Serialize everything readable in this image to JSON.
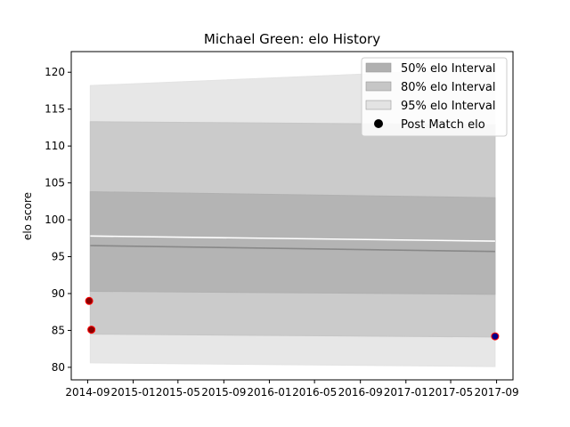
{
  "chart_data": {
    "type": "area",
    "title": "Michael Green: elo History",
    "xlabel": "",
    "ylabel": "elo score",
    "x_range": [
      "2014-07-19",
      "2017-10-15"
    ],
    "ylim": [
      78.3,
      122.8
    ],
    "x_ticks": [
      "2014-09",
      "2015-01",
      "2015-05",
      "2015-09",
      "2016-01",
      "2016-05",
      "2016-09",
      "2017-01",
      "2017-05",
      "2017-09"
    ],
    "y_ticks": [
      80,
      85,
      90,
      95,
      100,
      105,
      110,
      115,
      120
    ],
    "grid": false,
    "legend_position": "top-right",
    "legend": [
      {
        "label": "50% elo Interval",
        "kind": "patch",
        "color": "#b0b0b0"
      },
      {
        "label": "80% elo Interval",
        "kind": "patch",
        "color": "#c6c6c6"
      },
      {
        "label": "95% elo Interval",
        "kind": "patch",
        "color": "#e3e3e3"
      },
      {
        "label": "Post Match elo",
        "kind": "marker",
        "color": "#000000"
      }
    ],
    "bands": [
      {
        "name": "95% elo Interval",
        "color": "#e3e3e3",
        "x": [
          "2014-09-08",
          "2017-08-28"
        ],
        "lower": [
          80.6,
          80.1
        ],
        "upper": [
          118.2,
          120.5
        ]
      },
      {
        "name": "80% elo Interval",
        "color": "#c6c6c6",
        "x": [
          "2014-09-08",
          "2017-08-28"
        ],
        "lower": [
          84.5,
          84.1
        ],
        "upper": [
          113.3,
          112.9
        ]
      },
      {
        "name": "50% elo Interval",
        "color": "#b0b0b0",
        "x": [
          "2014-09-08",
          "2017-08-28"
        ],
        "lower": [
          90.3,
          89.9
        ],
        "upper": [
          103.8,
          103.0
        ]
      }
    ],
    "lines": [
      {
        "name": "mean",
        "color": "#888888",
        "x": [
          "2014-09-08",
          "2017-08-28"
        ],
        "y": [
          96.5,
          95.7
        ]
      },
      {
        "name": "white",
        "color": "#ffffff",
        "x": [
          "2014-09-08",
          "2017-08-28"
        ],
        "y": [
          97.8,
          97.1
        ]
      }
    ],
    "points": [
      {
        "x": "2014-09-05",
        "y": 89.0,
        "fill": "#8b0000",
        "edge": "#ff0000"
      },
      {
        "x": "2014-09-11",
        "y": 85.1,
        "fill": "#8b0000",
        "edge": "#ff0000"
      },
      {
        "x": "2017-08-28",
        "y": 84.2,
        "fill": "#00008b",
        "edge": "#ff0000"
      }
    ]
  }
}
